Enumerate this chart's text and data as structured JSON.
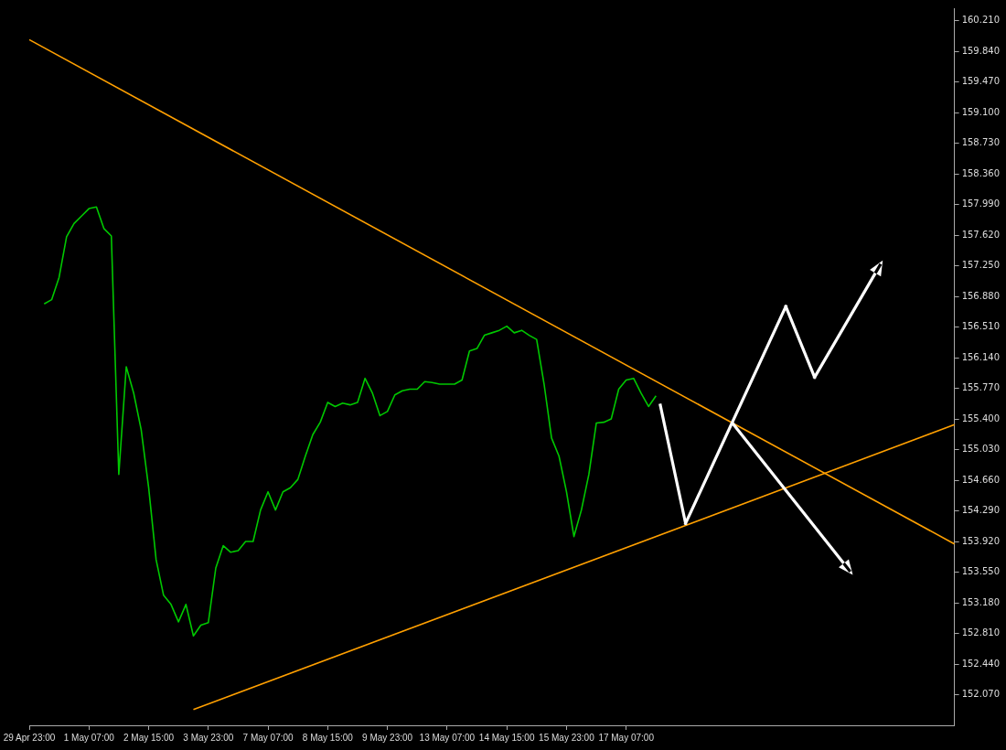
{
  "chart_data": {
    "type": "line",
    "categories": [
      "29 Apr 23:00",
      null,
      null,
      null,
      null,
      null,
      null,
      null,
      "1 May 07:00",
      null,
      null,
      null,
      null,
      null,
      null,
      null,
      "2 May 15:00",
      null,
      null,
      null,
      null,
      null,
      null,
      null,
      "3 May 23:00",
      null,
      null,
      null,
      null,
      null,
      null,
      null,
      "7 May 07:00",
      null,
      null,
      null,
      null,
      null,
      null,
      null,
      "8 May 15:00",
      null,
      null,
      null,
      null,
      null,
      null,
      null,
      "9 May 23:00",
      null,
      null,
      null,
      null,
      null,
      null,
      null,
      "13 May 07:00",
      null,
      null,
      null,
      null,
      null,
      null,
      null,
      "14 May 15:00",
      null,
      null,
      null,
      null,
      null,
      null,
      null,
      "15 May 23:00",
      null,
      null,
      null,
      null,
      null,
      null,
      null,
      "17 May 07:00",
      null,
      null,
      null,
      null,
      null,
      null,
      null,
      null,
      null,
      null,
      null,
      null,
      null,
      null,
      null,
      null,
      null,
      null,
      null,
      null,
      null,
      null,
      null,
      null,
      null,
      null,
      null,
      null,
      null,
      null,
      null,
      null,
      null,
      null,
      null,
      null,
      null,
      null,
      null,
      null,
      null,
      null,
      null,
      null
    ],
    "series": [
      {
        "color": "#00c800",
        "values": [
          null,
          null,
          156.79,
          156.84,
          157.11,
          157.6,
          157.76,
          157.85,
          157.94,
          157.96,
          157.7,
          157.61,
          154.73,
          156.03,
          155.71,
          155.27,
          154.57,
          153.7,
          153.27,
          153.16,
          152.95,
          153.16,
          152.78,
          152.91,
          152.94,
          153.6,
          153.87,
          153.79,
          153.81,
          153.92,
          153.92,
          154.3,
          154.52,
          154.3,
          154.52,
          154.57,
          154.67,
          154.95,
          155.21,
          155.36,
          155.6,
          155.55,
          155.59,
          155.57,
          155.6,
          155.89,
          155.71,
          155.44,
          155.49,
          155.69,
          155.74,
          155.76,
          155.76,
          155.85,
          155.84,
          155.82,
          155.82,
          155.82,
          155.87,
          156.22,
          156.25,
          156.41,
          156.44,
          156.47,
          156.52,
          156.44,
          156.47,
          156.41,
          156.36,
          155.82,
          155.17,
          154.95,
          154.52,
          153.98,
          154.3,
          154.73,
          155.35,
          155.36,
          155.4,
          155.76,
          155.87,
          155.89,
          155.71,
          155.55,
          155.68,
          null,
          null,
          null,
          null,
          null,
          null,
          null,
          null,
          null,
          null,
          null,
          null,
          null,
          null,
          null,
          null,
          null,
          null,
          null,
          null,
          null,
          null,
          null,
          null,
          null,
          null,
          null,
          null,
          null,
          null,
          null,
          null,
          null,
          null,
          null,
          null,
          null,
          null,
          null,
          null
        ]
      },
      {
        "color": "#ffa000",
        "values": [
          159.98,
          null,
          null,
          null,
          null,
          null,
          null,
          null,
          null,
          null,
          null,
          null,
          null,
          null,
          null,
          null,
          null,
          null,
          null,
          null,
          null,
          null,
          null,
          null,
          null,
          null,
          null,
          null,
          null,
          null,
          null,
          null,
          null,
          null,
          null,
          null,
          null,
          null,
          null,
          null,
          null,
          null,
          null,
          null,
          null,
          null,
          null,
          null,
          null,
          null,
          null,
          null,
          null,
          null,
          null,
          null,
          null,
          null,
          null,
          null,
          null,
          null,
          null,
          null,
          null,
          null,
          null,
          null,
          null,
          null,
          null,
          null,
          null,
          null,
          null,
          null,
          null,
          null,
          null,
          null,
          null,
          null,
          null,
          null,
          null,
          null,
          null,
          null,
          null,
          null,
          null,
          null,
          null,
          null,
          null,
          null,
          null,
          null,
          null,
          null,
          null,
          null,
          null,
          null,
          null,
          null,
          null,
          null,
          null,
          null,
          null,
          null,
          null,
          null,
          null,
          null,
          null,
          null,
          null,
          null,
          null,
          null,
          null,
          null,
          153.89
        ]
      },
      {
        "color": "#ffa000",
        "values": [
          null,
          null,
          null,
          null,
          null,
          null,
          null,
          null,
          null,
          null,
          null,
          null,
          null,
          null,
          null,
          null,
          null,
          null,
          null,
          null,
          null,
          null,
          151.89,
          null,
          null,
          null,
          null,
          null,
          null,
          null,
          null,
          null,
          null,
          null,
          null,
          null,
          null,
          null,
          null,
          null,
          null,
          null,
          null,
          null,
          null,
          null,
          null,
          null,
          null,
          null,
          null,
          null,
          null,
          null,
          null,
          null,
          null,
          null,
          null,
          null,
          null,
          null,
          null,
          null,
          null,
          null,
          null,
          null,
          null,
          null,
          null,
          null,
          null,
          null,
          null,
          null,
          null,
          null,
          null,
          null,
          null,
          null,
          null,
          null,
          null,
          null,
          null,
          null,
          null,
          null,
          null,
          null,
          null,
          null,
          null,
          null,
          null,
          null,
          null,
          null,
          null,
          null,
          null,
          null,
          null,
          null,
          null,
          null,
          null,
          null,
          null,
          null,
          null,
          null,
          null,
          null,
          null,
          null,
          null,
          null,
          null,
          null,
          null,
          null,
          155.33
        ]
      }
    ],
    "ylim": [
      151.7,
      160.36
    ],
    "yticks": [
      {
        "value": 152.07,
        "label": "152.070"
      },
      {
        "value": 152.44,
        "label": "152.440"
      },
      {
        "value": 152.81,
        "label": "152.810"
      },
      {
        "value": 153.18,
        "label": "153.180"
      },
      {
        "value": 153.55,
        "label": "153.550"
      },
      {
        "value": 153.92,
        "label": "153.920"
      },
      {
        "value": 154.29,
        "label": "154.290"
      },
      {
        "value": 154.66,
        "label": "154.660"
      },
      {
        "value": 155.03,
        "label": "155.030"
      },
      {
        "value": 155.4,
        "label": "155.400"
      },
      {
        "value": 155.77,
        "label": "155.770"
      },
      {
        "value": 156.14,
        "label": "156.140"
      },
      {
        "value": 156.51,
        "label": "156.510"
      },
      {
        "value": 156.88,
        "label": "156.880"
      },
      {
        "value": 157.25,
        "label": "157.250"
      },
      {
        "value": 157.62,
        "label": "157.620"
      },
      {
        "value": 157.99,
        "label": "157.990"
      },
      {
        "value": 158.36,
        "label": "158.360"
      },
      {
        "value": 158.73,
        "label": "158.730"
      },
      {
        "value": 159.1,
        "label": "159.100"
      },
      {
        "value": 159.47,
        "label": "159.470"
      },
      {
        "value": 159.84,
        "label": "159.840"
      },
      {
        "value": 160.21,
        "label": "160.210"
      }
    ],
    "grid": false,
    "marker": "none"
  }
}
